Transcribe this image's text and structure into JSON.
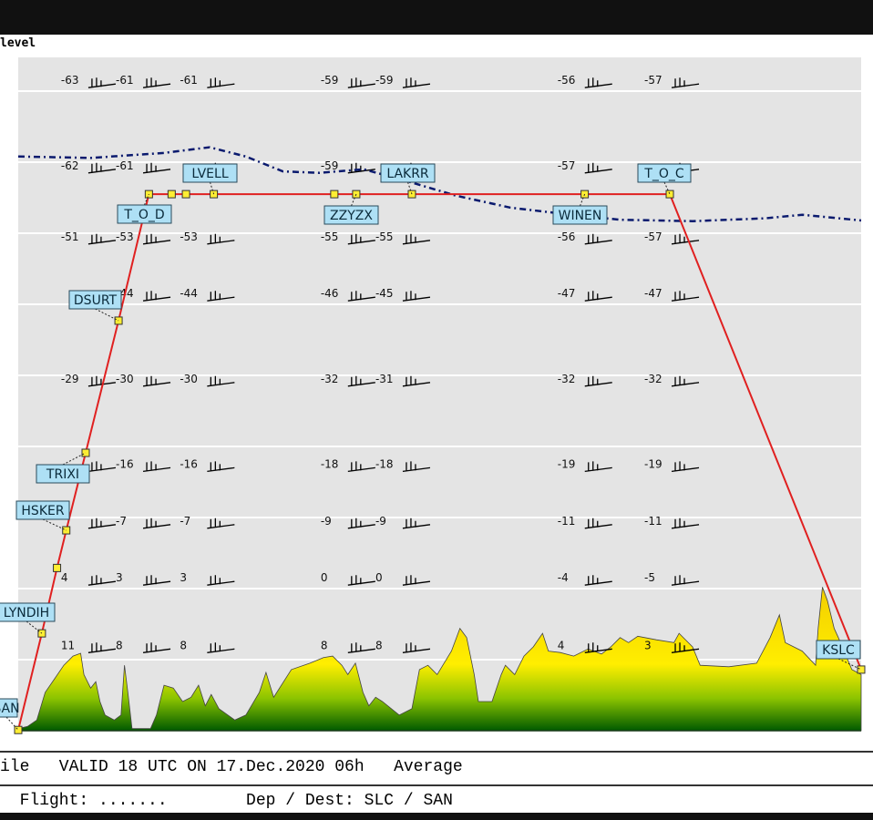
{
  "header": {
    "title": "level"
  },
  "footer": {
    "valid_line": "ile   VALID 18 UTC ON 17.Dec.2020 06h   Average",
    "flight_line": "  Flight: .......        Dep / Dest: SLC / SAN"
  },
  "colors": {
    "route": "#e02020",
    "waypoint": "#ffee33",
    "label_fill": "#aee0f5",
    "tropopause": "#0a1a6e",
    "background": "#e4e4e4",
    "terrain_top": "#ffee00",
    "terrain_bottom": "#005a00"
  },
  "chart_data": {
    "type": "line",
    "title": "",
    "xlabel": "",
    "ylabel": "",
    "xlim": [
      0,
      100
    ],
    "ylim": [
      0,
      9.5
    ],
    "grid": true,
    "grid_levels": [
      1,
      2,
      3,
      4,
      5,
      6,
      7,
      8,
      9
    ],
    "route": [
      {
        "x": 0,
        "y": 0.01,
        "label": "SAN"
      },
      {
        "x": 2.8,
        "y": 1.37,
        "label": "LYNDIH"
      },
      {
        "x": 4.6,
        "y": 2.29,
        "label": ""
      },
      {
        "x": 5.7,
        "y": 2.82,
        "label": "HSKER"
      },
      {
        "x": 8.0,
        "y": 3.91,
        "label": "TRIXI"
      },
      {
        "x": 11.9,
        "y": 5.77,
        "label": "DSURT"
      },
      {
        "x": 15.5,
        "y": 7.55,
        "label": "T_O_D"
      },
      {
        "x": 18.2,
        "y": 7.55,
        "label": ""
      },
      {
        "x": 19.9,
        "y": 7.55,
        "label": ""
      },
      {
        "x": 23.2,
        "y": 7.55,
        "label": "LVELL"
      },
      {
        "x": 37.5,
        "y": 7.55,
        "label": ""
      },
      {
        "x": 40.1,
        "y": 7.55,
        "label": "ZZYZX"
      },
      {
        "x": 46.7,
        "y": 7.55,
        "label": "LAKRR"
      },
      {
        "x": 67.2,
        "y": 7.55,
        "label": "WINEN"
      },
      {
        "x": 77.3,
        "y": 7.55,
        "label": "T_O_C"
      },
      {
        "x": 100,
        "y": 0.86,
        "label": "KSLC"
      }
    ],
    "tropopause": [
      [
        0,
        8.08
      ],
      [
        8.6,
        8.06
      ],
      [
        17.3,
        8.13
      ],
      [
        22.7,
        8.21
      ],
      [
        27,
        8.08
      ],
      [
        31.4,
        7.87
      ],
      [
        35.7,
        7.85
      ],
      [
        41,
        7.9
      ],
      [
        46.5,
        7.72
      ],
      [
        51.9,
        7.53
      ],
      [
        58.4,
        7.36
      ],
      [
        64.9,
        7.27
      ],
      [
        71.4,
        7.19
      ],
      [
        80,
        7.17
      ],
      [
        88.6,
        7.21
      ],
      [
        93,
        7.26
      ],
      [
        100,
        7.18
      ]
    ],
    "temperature_columns": [
      8.1,
      14.6,
      22.2,
      38.9,
      45.4,
      67.0,
      77.3
    ],
    "temperature_rows": [
      {
        "level": 9.1,
        "values": [
          -63,
          -61,
          -61,
          -59,
          -59,
          -56,
          -57
        ]
      },
      {
        "level": 7.9,
        "values": [
          -62,
          -61,
          null,
          -59,
          null,
          -57,
          null
        ]
      },
      {
        "level": 6.9,
        "values": [
          -51,
          -53,
          -53,
          -55,
          -55,
          -56,
          -57
        ]
      },
      {
        "level": 6.1,
        "values": [
          null,
          -44,
          -44,
          -46,
          -45,
          -47,
          -47
        ]
      },
      {
        "level": 4.9,
        "values": [
          -29,
          -30,
          -30,
          -32,
          -31,
          -32,
          -32
        ]
      },
      {
        "level": 3.7,
        "values": [
          null,
          -16,
          -16,
          -18,
          -18,
          -19,
          -19
        ]
      },
      {
        "level": 2.9,
        "values": [
          null,
          -7,
          -7,
          -9,
          -9,
          -11,
          -11
        ]
      },
      {
        "level": 2.1,
        "values": [
          4,
          3,
          3,
          0,
          0,
          -4,
          -5
        ]
      },
      {
        "level": 1.15,
        "values": [
          11,
          8,
          8,
          8,
          8,
          4,
          3
        ]
      }
    ],
    "terrain": [
      [
        0,
        0.03
      ],
      [
        1.1,
        0.06
      ],
      [
        2.2,
        0.15
      ],
      [
        3.2,
        0.54
      ],
      [
        4.3,
        0.73
      ],
      [
        5.4,
        0.92
      ],
      [
        6.5,
        1.05
      ],
      [
        7.4,
        1.09
      ],
      [
        7.8,
        0.79
      ],
      [
        8.6,
        0.6
      ],
      [
        9.2,
        0.69
      ],
      [
        9.7,
        0.41
      ],
      [
        10.3,
        0.22
      ],
      [
        11.4,
        0.15
      ],
      [
        12.2,
        0.22
      ],
      [
        12.6,
        0.92
      ],
      [
        13,
        0.54
      ],
      [
        13.5,
        0.03
      ],
      [
        15.7,
        0.03
      ],
      [
        16.4,
        0.22
      ],
      [
        17.3,
        0.64
      ],
      [
        18.4,
        0.6
      ],
      [
        19.5,
        0.41
      ],
      [
        20.5,
        0.47
      ],
      [
        21.4,
        0.64
      ],
      [
        22.2,
        0.35
      ],
      [
        22.9,
        0.51
      ],
      [
        23.8,
        0.31
      ],
      [
        25.7,
        0.15
      ],
      [
        27,
        0.22
      ],
      [
        28.6,
        0.54
      ],
      [
        29.4,
        0.82
      ],
      [
        30.3,
        0.47
      ],
      [
        32.4,
        0.86
      ],
      [
        34.6,
        0.95
      ],
      [
        36.2,
        1.03
      ],
      [
        37.3,
        1.05
      ],
      [
        38.4,
        0.92
      ],
      [
        39.1,
        0.79
      ],
      [
        40,
        0.95
      ],
      [
        40.9,
        0.54
      ],
      [
        41.6,
        0.35
      ],
      [
        42.4,
        0.47
      ],
      [
        43.2,
        0.41
      ],
      [
        45.2,
        0.22
      ],
      [
        46.7,
        0.31
      ],
      [
        47.6,
        0.86
      ],
      [
        48.6,
        0.92
      ],
      [
        49.7,
        0.79
      ],
      [
        51.4,
        1.12
      ],
      [
        52.4,
        1.44
      ],
      [
        53.2,
        1.31
      ],
      [
        54.1,
        0.79
      ],
      [
        54.6,
        0.41
      ],
      [
        56.2,
        0.41
      ],
      [
        57.3,
        0.79
      ],
      [
        57.8,
        0.92
      ],
      [
        58.9,
        0.79
      ],
      [
        60,
        1.05
      ],
      [
        61.1,
        1.18
      ],
      [
        62.2,
        1.37
      ],
      [
        62.9,
        1.12
      ],
      [
        64.3,
        1.1
      ],
      [
        65.9,
        1.05
      ],
      [
        67.6,
        1.15
      ],
      [
        69.2,
        1.08
      ],
      [
        70.3,
        1.18
      ],
      [
        71.4,
        1.31
      ],
      [
        72.4,
        1.24
      ],
      [
        73.5,
        1.33
      ],
      [
        75.7,
        1.28
      ],
      [
        77.8,
        1.24
      ],
      [
        78.4,
        1.37
      ],
      [
        80,
        1.18
      ],
      [
        80.9,
        0.92
      ],
      [
        84.3,
        0.9
      ],
      [
        87.6,
        0.95
      ],
      [
        89.2,
        1.31
      ],
      [
        90.3,
        1.63
      ],
      [
        91,
        1.24
      ],
      [
        93,
        1.12
      ],
      [
        94.6,
        0.92
      ],
      [
        94.9,
        1.44
      ],
      [
        95.4,
        2.02
      ],
      [
        96,
        1.83
      ],
      [
        96.8,
        1.44
      ],
      [
        97.3,
        1.31
      ],
      [
        98.9,
        0.86
      ],
      [
        100,
        0.79
      ]
    ]
  }
}
